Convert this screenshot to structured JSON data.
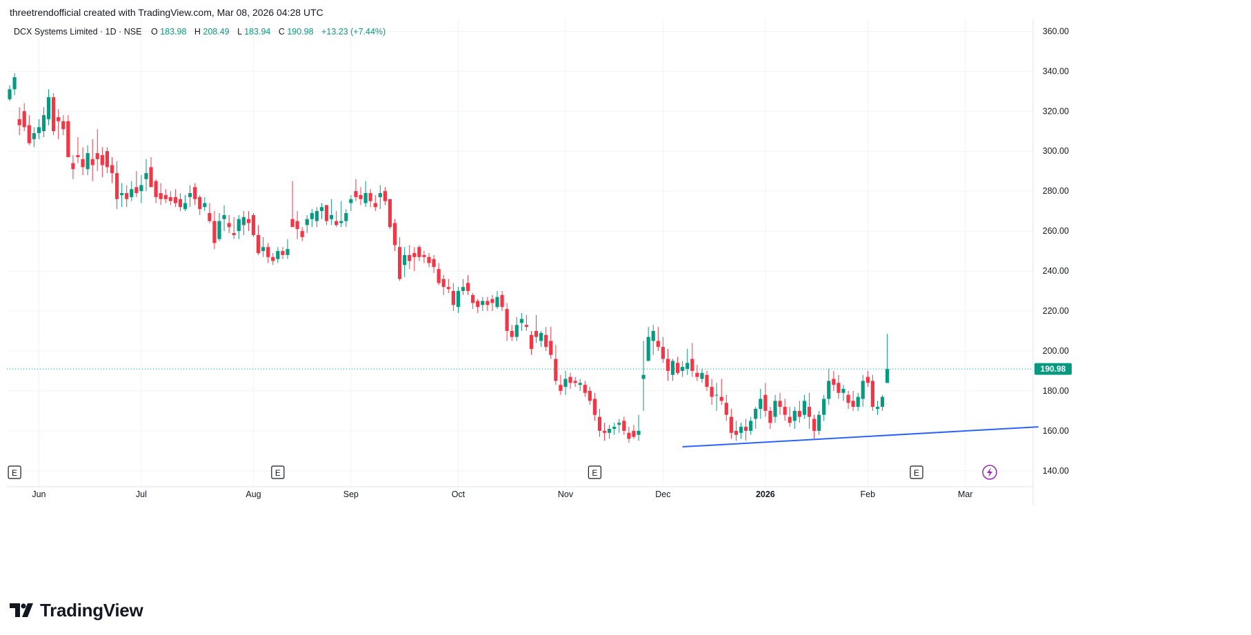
{
  "header": {
    "credit": "threetrendofficial created with TradingView.com, Mar 08, 2026 04:28 UTC"
  },
  "legend": {
    "symbol": "DCX Systems Limited · 1D · NSE",
    "o_label": "O",
    "o_value": "183.98",
    "h_label": "H",
    "h_value": "208.49",
    "l_label": "L",
    "l_value": "183.94",
    "c_label": "C",
    "c_value": "190.98",
    "change": "+13.23 (+7.44%)"
  },
  "footer": {
    "brand": "TradingView"
  },
  "colors": {
    "up": "#089981",
    "down": "#F23645",
    "trendline": "#2962FF",
    "grid": "#F0F3FA",
    "text": "#131722",
    "price_label_bg": "#089981",
    "lightning": "#9C27B0"
  },
  "chart_data": {
    "type": "candlestick",
    "ylim": [
      132,
      366
    ],
    "yticks": [
      "140.00",
      "160.00",
      "180.00",
      "200.00",
      "220.00",
      "240.00",
      "260.00",
      "280.00",
      "300.00",
      "320.00",
      "340.00",
      "360.00"
    ],
    "xticks": [
      {
        "label": "Jun",
        "index": 6,
        "bold": false
      },
      {
        "label": "Jul",
        "index": 27,
        "bold": false
      },
      {
        "label": "Aug",
        "index": 50,
        "bold": false
      },
      {
        "label": "Sep",
        "index": 70,
        "bold": false
      },
      {
        "label": "Oct",
        "index": 92,
        "bold": false
      },
      {
        "label": "Nov",
        "index": 114,
        "bold": false
      },
      {
        "label": "Dec",
        "index": 134,
        "bold": false
      },
      {
        "label": "2026",
        "index": 155,
        "bold": true
      },
      {
        "label": "Feb",
        "index": 176,
        "bold": false
      },
      {
        "label": "Mar",
        "index": 196,
        "bold": false
      }
    ],
    "last_price": "190.98",
    "trendline": {
      "start": [
        138,
        152
      ],
      "end": [
        211,
        162
      ]
    },
    "events": [
      {
        "type": "E",
        "index": 1
      },
      {
        "type": "E",
        "index": 55
      },
      {
        "type": "E",
        "index": 120
      },
      {
        "type": "E",
        "index": 186
      },
      {
        "type": "lightning-icon",
        "index": 201
      }
    ],
    "ohlc": [
      [
        326,
        333,
        325,
        331
      ],
      [
        331,
        339,
        328,
        337
      ],
      [
        316,
        322,
        308,
        313
      ],
      [
        320,
        324,
        310,
        312
      ],
      [
        313,
        318,
        303,
        304
      ],
      [
        306,
        312,
        302,
        309
      ],
      [
        309,
        316,
        306,
        312
      ],
      [
        310,
        322,
        307,
        318
      ],
      [
        316,
        331,
        313,
        327
      ],
      [
        327,
        329,
        308,
        310
      ],
      [
        317,
        321,
        306,
        315
      ],
      [
        315,
        318,
        308,
        311
      ],
      [
        315,
        318,
        297,
        297
      ],
      [
        294,
        298,
        286,
        291
      ],
      [
        298,
        307,
        294,
        297
      ],
      [
        296,
        302,
        288,
        292
      ],
      [
        291,
        303,
        288,
        299
      ],
      [
        296,
        306,
        285,
        293
      ],
      [
        299,
        311,
        290,
        296
      ],
      [
        298,
        302,
        287,
        293
      ],
      [
        300,
        302,
        289,
        292
      ],
      [
        293,
        297,
        284,
        289
      ],
      [
        289,
        295,
        271,
        276
      ],
      [
        278,
        284,
        272,
        279
      ],
      [
        279,
        283,
        272,
        276
      ],
      [
        277,
        285,
        275,
        281
      ],
      [
        282,
        290,
        277,
        279
      ],
      [
        280,
        288,
        274,
        283
      ],
      [
        286,
        296,
        280,
        289
      ],
      [
        292,
        297,
        282,
        282
      ],
      [
        285,
        286,
        274,
        277
      ],
      [
        279,
        284,
        273,
        276
      ],
      [
        278,
        281,
        274,
        276
      ],
      [
        277,
        280,
        273,
        275
      ],
      [
        277,
        281,
        272,
        274
      ],
      [
        276,
        279,
        270,
        272
      ],
      [
        271,
        278,
        270,
        274
      ],
      [
        277,
        283,
        272,
        279
      ],
      [
        282,
        284,
        273,
        276
      ],
      [
        277,
        278,
        268,
        271
      ],
      [
        272,
        277,
        270,
        274
      ],
      [
        269,
        274,
        264,
        265
      ],
      [
        265,
        270,
        251,
        254
      ],
      [
        256,
        269,
        255,
        265
      ],
      [
        266,
        273,
        260,
        268
      ],
      [
        264,
        268,
        259,
        262
      ],
      [
        259,
        267,
        256,
        258
      ],
      [
        260,
        268,
        256,
        266
      ],
      [
        263,
        270,
        258,
        267
      ],
      [
        266,
        270,
        260,
        264
      ],
      [
        268,
        269,
        257,
        258
      ],
      [
        258,
        263,
        248,
        249
      ],
      [
        250,
        257,
        247,
        252
      ],
      [
        252,
        254,
        244,
        247
      ],
      [
        247,
        249,
        243,
        245
      ],
      [
        246,
        252,
        244,
        250
      ],
      [
        250,
        252,
        246,
        248
      ],
      [
        248,
        256,
        246,
        251
      ],
      [
        266,
        285,
        264,
        262
      ],
      [
        265,
        270,
        256,
        261
      ],
      [
        260,
        262,
        255,
        257
      ],
      [
        263,
        268,
        259,
        266
      ],
      [
        266,
        271,
        262,
        269
      ],
      [
        265,
        272,
        262,
        270
      ],
      [
        270,
        274,
        266,
        272
      ],
      [
        273,
        273,
        263,
        265
      ],
      [
        266,
        276,
        263,
        268
      ],
      [
        265,
        270,
        262,
        263
      ],
      [
        264,
        275,
        262,
        265
      ],
      [
        265,
        271,
        262,
        269
      ],
      [
        274,
        278,
        270,
        276
      ],
      [
        280,
        286,
        275,
        277
      ],
      [
        278,
        282,
        273,
        276
      ],
      [
        274,
        285,
        272,
        279
      ],
      [
        279,
        281,
        272,
        275
      ],
      [
        274,
        278,
        270,
        272
      ],
      [
        277,
        283,
        271,
        279
      ],
      [
        280,
        282,
        273,
        275
      ],
      [
        276,
        276,
        261,
        262
      ],
      [
        264,
        266,
        250,
        253
      ],
      [
        252,
        257,
        235,
        236
      ],
      [
        243,
        252,
        237,
        248
      ],
      [
        248,
        253,
        241,
        245
      ],
      [
        249,
        252,
        240,
        247
      ],
      [
        252,
        253,
        245,
        247
      ],
      [
        248,
        250,
        244,
        247
      ],
      [
        247,
        249,
        242,
        244
      ],
      [
        246,
        248,
        239,
        242
      ],
      [
        241,
        244,
        233,
        234
      ],
      [
        236,
        238,
        228,
        232
      ],
      [
        232,
        236,
        229,
        231
      ],
      [
        230,
        234,
        220,
        223
      ],
      [
        222,
        232,
        219,
        230
      ],
      [
        230,
        236,
        228,
        232
      ],
      [
        234,
        238,
        228,
        230
      ],
      [
        228,
        229,
        221,
        224
      ],
      [
        225,
        226,
        219,
        222
      ],
      [
        223,
        227,
        220,
        225
      ],
      [
        225,
        227,
        220,
        223
      ],
      [
        226,
        228,
        220,
        224
      ],
      [
        222,
        230,
        221,
        227
      ],
      [
        228,
        230,
        220,
        222
      ],
      [
        221,
        224,
        205,
        210
      ],
      [
        210,
        213,
        205,
        207
      ],
      [
        207,
        217,
        205,
        213
      ],
      [
        214,
        219,
        210,
        216
      ],
      [
        213,
        218,
        210,
        212
      ],
      [
        208,
        210,
        198,
        201
      ],
      [
        210,
        218,
        204,
        207
      ],
      [
        205,
        210,
        202,
        209
      ],
      [
        208,
        212,
        200,
        202
      ],
      [
        205,
        212,
        196,
        198
      ],
      [
        196,
        203,
        183,
        185
      ],
      [
        183,
        188,
        178,
        180
      ],
      [
        182,
        190,
        178,
        186
      ],
      [
        187,
        189,
        181,
        184
      ],
      [
        185,
        187,
        182,
        184
      ],
      [
        183,
        186,
        180,
        184
      ],
      [
        183,
        185,
        177,
        179
      ],
      [
        180,
        182,
        173,
        175
      ],
      [
        176,
        179,
        165,
        168
      ],
      [
        167,
        171,
        157,
        160
      ],
      [
        160,
        164,
        155,
        159
      ],
      [
        159,
        163,
        156,
        161
      ],
      [
        161,
        164,
        158,
        162
      ],
      [
        163,
        166,
        159,
        164
      ],
      [
        165,
        167,
        158,
        160
      ],
      [
        159,
        162,
        154,
        156
      ],
      [
        160,
        163,
        156,
        157
      ],
      [
        158,
        168,
        155,
        160
      ],
      [
        186,
        205,
        170,
        188
      ],
      [
        195,
        212,
        195,
        207
      ],
      [
        205,
        213,
        198,
        210
      ],
      [
        205,
        212,
        200,
        202
      ],
      [
        202,
        207,
        194,
        196
      ],
      [
        196,
        201,
        185,
        190
      ],
      [
        188,
        196,
        185,
        195
      ],
      [
        194,
        197,
        188,
        189
      ],
      [
        190,
        195,
        187,
        192
      ],
      [
        191,
        201,
        188,
        194
      ],
      [
        196,
        204,
        187,
        190
      ],
      [
        189,
        193,
        185,
        187
      ],
      [
        186,
        191,
        184,
        189
      ],
      [
        188,
        190,
        180,
        182
      ],
      [
        182,
        186,
        173,
        177
      ],
      [
        178,
        184,
        170,
        178
      ],
      [
        177,
        186,
        173,
        175
      ],
      [
        174,
        178,
        165,
        168
      ],
      [
        167,
        171,
        156,
        159
      ],
      [
        160,
        165,
        155,
        158
      ],
      [
        159,
        164,
        156,
        162
      ],
      [
        162,
        166,
        155,
        160
      ],
      [
        160,
        167,
        158,
        165
      ],
      [
        166,
        172,
        161,
        171
      ],
      [
        171,
        181,
        166,
        176
      ],
      [
        178,
        184,
        167,
        170
      ],
      [
        170,
        172,
        161,
        164
      ],
      [
        167,
        178,
        164,
        175
      ],
      [
        175,
        179,
        168,
        172
      ],
      [
        172,
        176,
        165,
        168
      ],
      [
        167,
        172,
        162,
        164
      ],
      [
        165,
        172,
        161,
        170
      ],
      [
        170,
        175,
        164,
        167
      ],
      [
        168,
        178,
        166,
        175
      ],
      [
        172,
        179,
        161,
        167
      ],
      [
        166,
        168,
        156,
        160
      ],
      [
        160,
        170,
        158,
        168
      ],
      [
        168,
        178,
        165,
        176
      ],
      [
        176,
        191,
        173,
        185
      ],
      [
        186,
        190,
        180,
        183
      ],
      [
        184,
        188,
        176,
        179
      ],
      [
        179,
        183,
        175,
        181
      ],
      [
        178,
        180,
        171,
        174
      ],
      [
        175,
        180,
        170,
        172
      ],
      [
        172,
        179,
        170,
        177
      ],
      [
        176,
        188,
        172,
        185
      ],
      [
        187,
        190,
        182,
        184
      ],
      [
        185,
        188,
        170,
        172
      ],
      [
        171,
        175,
        168,
        172
      ],
      [
        172,
        178,
        170,
        177
      ],
      [
        183.98,
        208.49,
        183.94,
        190.98
      ]
    ]
  }
}
